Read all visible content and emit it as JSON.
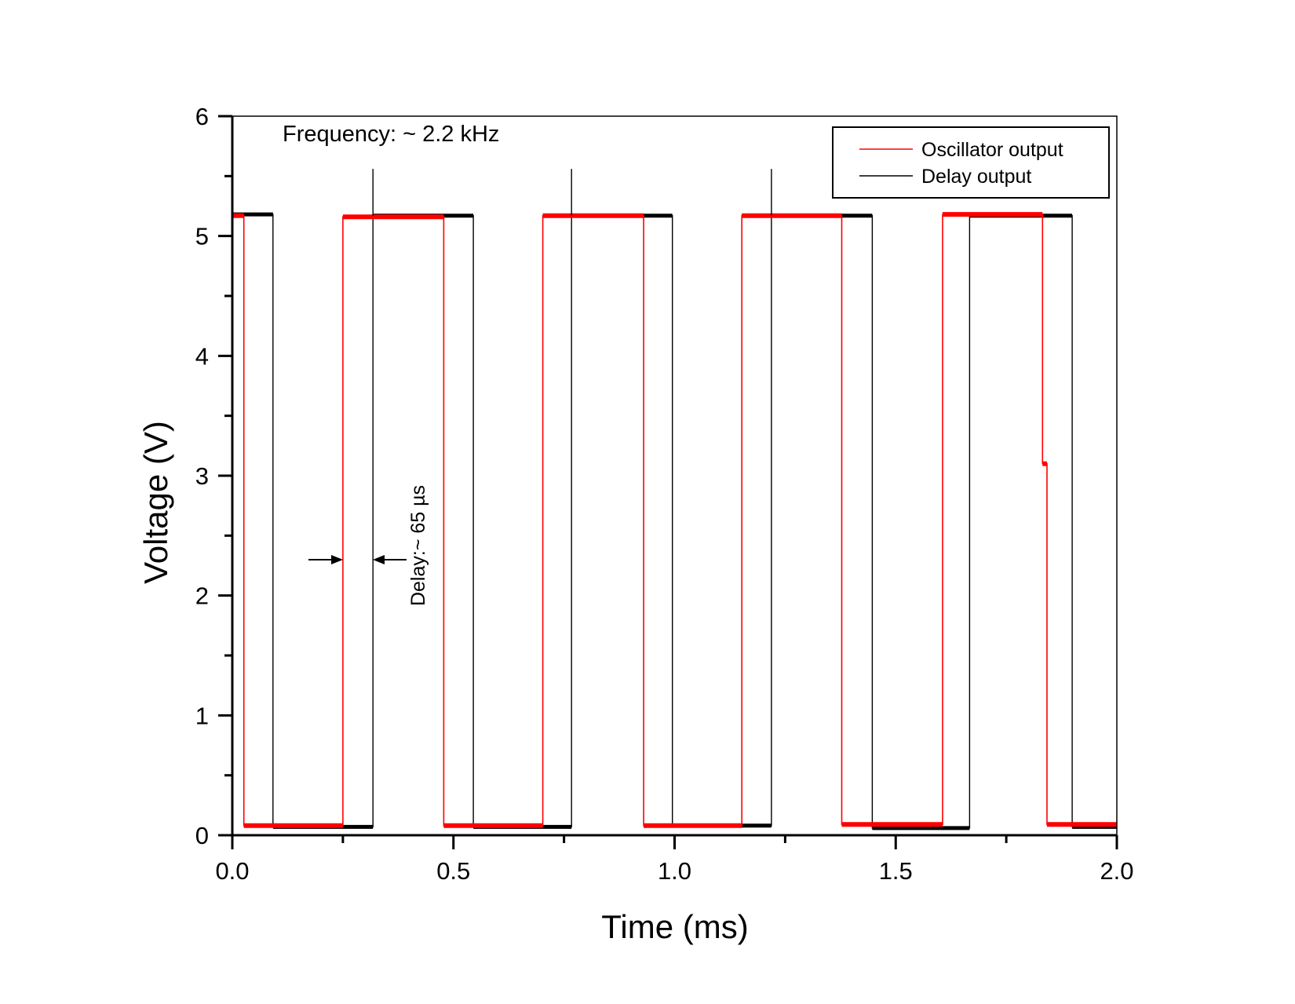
{
  "chart_data": {
    "type": "line",
    "title": "",
    "xlabel": "Time (ms)",
    "ylabel": "Voltage (V)",
    "xlim": [
      0,
      2.0
    ],
    "ylim": [
      0,
      6
    ],
    "xticks": [
      "0.0",
      "0.5",
      "1.0",
      "1.5",
      "2.0"
    ],
    "yticks": [
      "0",
      "1",
      "2",
      "3",
      "4",
      "5",
      "6"
    ],
    "grid": false,
    "legend_position": "top-right",
    "annotations": {
      "frequency": "Frequency: ~ 2.2 kHz",
      "delay": "Delay:~ 65 µs"
    },
    "series": [
      {
        "name": "Oscillator output",
        "color": "#ff0000",
        "x": [
          0,
          0.026,
          0.026,
          0.25,
          0.25,
          0.478,
          0.478,
          0.702,
          0.702,
          0.93,
          0.93,
          1.152,
          1.152,
          1.378,
          1.378,
          1.606,
          1.606,
          1.832,
          1.832,
          1.842,
          1.842,
          2.0
        ],
        "y": [
          5.17,
          5.17,
          0.08,
          0.08,
          5.16,
          5.16,
          0.08,
          0.08,
          5.17,
          5.17,
          0.08,
          0.08,
          5.17,
          5.17,
          0.09,
          0.09,
          5.18,
          5.18,
          3.1,
          3.1,
          0.09,
          0.09
        ]
      },
      {
        "name": "Delay output",
        "color": "#000000",
        "x": [
          0,
          0.092,
          0.092,
          0.318,
          0.318,
          0.545,
          0.545,
          0.767,
          0.767,
          0.995,
          0.995,
          1.219,
          1.219,
          1.447,
          1.447,
          1.667,
          1.667,
          1.899,
          1.899,
          2.0
        ],
        "y": [
          5.18,
          5.18,
          0.07,
          0.07,
          5.17,
          5.17,
          0.07,
          0.07,
          5.17,
          5.17,
          0.08,
          0.08,
          5.17,
          5.17,
          0.06,
          0.06,
          5.17,
          5.17,
          0.07,
          0.07
        ]
      }
    ]
  }
}
